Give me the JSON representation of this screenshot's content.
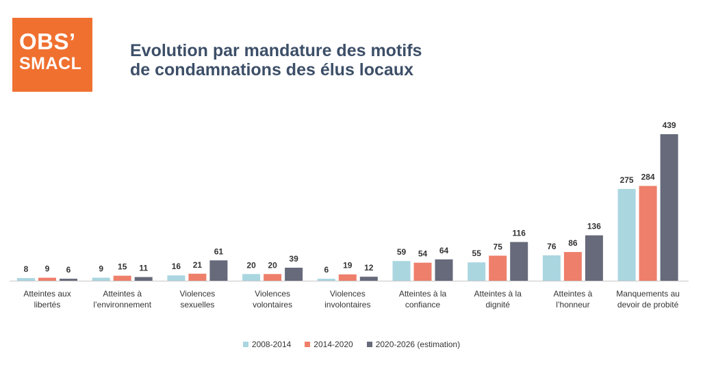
{
  "logo": {
    "line1": "OBS’",
    "line2": "SMACL",
    "color": "#f07030"
  },
  "title": {
    "line1": "Evolution par mandature des motifs",
    "line2": "de condamnations des élus locaux",
    "color": "#3d4f68"
  },
  "chart_data": {
    "type": "bar",
    "categories": [
      [
        "Atteintes aux",
        "libertés"
      ],
      [
        "Atteintes à",
        "l’environnement"
      ],
      [
        "Violences",
        "sexuelles"
      ],
      [
        "Violences",
        "volontaires"
      ],
      [
        "Violences",
        "involontaires"
      ],
      [
        "Atteintes à la",
        "confiance"
      ],
      [
        "Atteintes à la",
        "dignité"
      ],
      [
        "Atteintes à",
        "l’honneur"
      ],
      [
        "Manquements au",
        "devoir de probité"
      ]
    ],
    "series": [
      {
        "name": "2008-2014",
        "color": "#aad6e0",
        "values": [
          8,
          9,
          16,
          20,
          6,
          59,
          55,
          76,
          275
        ]
      },
      {
        "name": "2014-2020",
        "color": "#ee7f6b",
        "values": [
          9,
          15,
          21,
          20,
          19,
          54,
          75,
          86,
          284
        ]
      },
      {
        "name": "2020-2026 (estimation)",
        "color": "#666a7a",
        "values": [
          6,
          11,
          61,
          39,
          12,
          64,
          116,
          136,
          439
        ]
      }
    ],
    "ylim": [
      0,
      439
    ],
    "data_labels": true,
    "grid": false,
    "legend_position": "bottom"
  }
}
